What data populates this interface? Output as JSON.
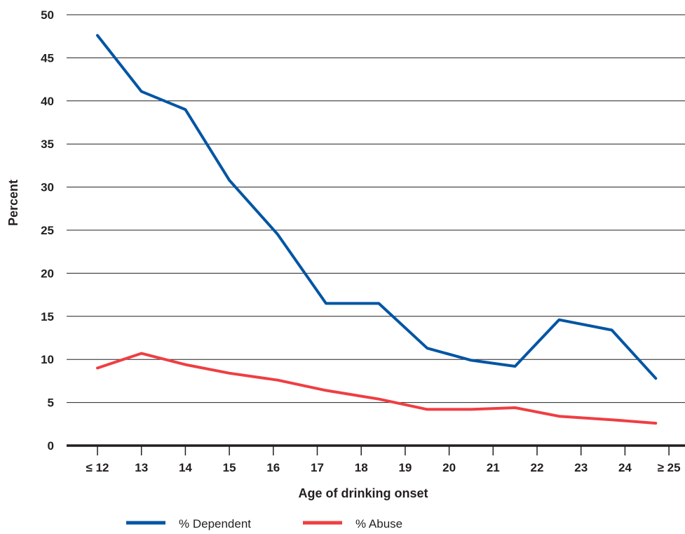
{
  "chart_data": {
    "type": "line",
    "xlabel": "Age of drinking onset",
    "ylabel": "Percent",
    "categories": [
      "≤ 12",
      "13",
      "14",
      "15",
      "16",
      "17",
      "18",
      "19",
      "20",
      "21",
      "22",
      "23",
      "24",
      "≥ 25"
    ],
    "series": [
      {
        "name": "% Dependent",
        "color": "#0055a4",
        "x": [
          11.5,
          12.5,
          13.5,
          14.5,
          15.6,
          16.7,
          17.9,
          19.0,
          20.0,
          21.0,
          22.0,
          23.2,
          24.2,
          25.2
        ],
        "values": [
          47.6,
          41.1,
          39.0,
          30.8,
          24.5,
          16.5,
          16.5,
          11.3,
          9.9,
          9.2,
          14.6,
          13.4,
          7.8,
          null
        ]
      },
      {
        "name": "% Abuse",
        "color": "#ef3e42",
        "x": [
          11.5,
          12.5,
          13.5,
          14.5,
          15.6,
          16.7,
          17.9,
          19.0,
          20.0,
          21.0,
          22.0,
          23.2,
          24.2,
          25.2
        ],
        "values": [
          9.0,
          10.7,
          9.4,
          8.4,
          7.6,
          6.4,
          5.4,
          4.2,
          4.2,
          4.4,
          3.4,
          3.0,
          2.6,
          null
        ]
      }
    ],
    "ylim": [
      0,
      50
    ],
    "yticks": [
      "0",
      "5",
      "10",
      "15",
      "20",
      "25",
      "30",
      "35",
      "40",
      "45",
      "50"
    ],
    "grid": true,
    "legend": "bottom"
  }
}
